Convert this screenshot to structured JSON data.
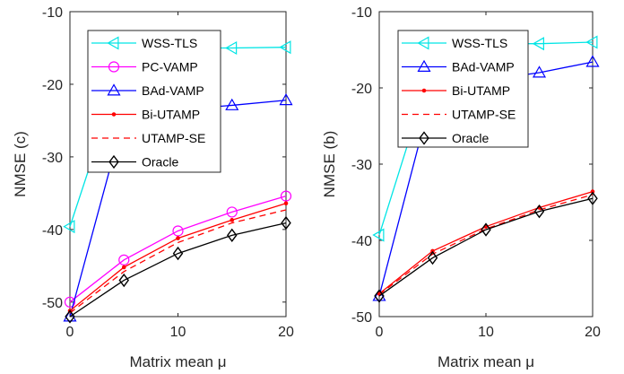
{
  "chart_data": [
    {
      "type": "line",
      "xlabel": "Matrix mean μ",
      "ylabel": "NMSE (c)",
      "xlim": [
        0,
        20
      ],
      "ylim": [
        -52,
        -10
      ],
      "xticks": [
        "0",
        "10",
        "20"
      ],
      "yticks": [
        "-50",
        "-40",
        "-30",
        "-20",
        "-10"
      ],
      "grid": false,
      "legend_placement": "top-center",
      "x": [
        0,
        5,
        10,
        15,
        20
      ],
      "series": [
        {
          "name": "WSS-TLS",
          "color": "#00e5e5",
          "marker": "triangle-left",
          "dash": "solid",
          "values": [
            -39.6,
            -17.0,
            -15.0,
            -15.0,
            -14.9
          ]
        },
        {
          "name": "PC-VAMP",
          "color": "#ff00ff",
          "marker": "circle",
          "dash": "solid",
          "values": [
            -50.0,
            -44.2,
            -40.2,
            -37.6,
            -35.4
          ]
        },
        {
          "name": "BAd-VAMP",
          "color": "#0000ff",
          "marker": "triangle-up",
          "dash": "solid",
          "values": [
            -52.0,
            -24.5,
            -23.5,
            -22.9,
            -22.2
          ]
        },
        {
          "name": "Bi-UTAMP",
          "color": "#ff0000",
          "marker": "dot",
          "dash": "solid",
          "values": [
            -51.2,
            -45.2,
            -41.2,
            -38.7,
            -36.4
          ]
        },
        {
          "name": "UTAMP-SE",
          "color": "#ff0000",
          "marker": "none",
          "dash": "dashed",
          "values": [
            -51.5,
            -45.8,
            -41.8,
            -39.1,
            -37.3
          ]
        },
        {
          "name": "Oracle",
          "color": "#000000",
          "marker": "diamond",
          "dash": "solid",
          "values": [
            -52.0,
            -47.0,
            -43.3,
            -40.8,
            -39.1
          ]
        }
      ]
    },
    {
      "type": "line",
      "xlabel": "Matrix mean μ",
      "ylabel": "NMSE (b)",
      "xlim": [
        0,
        20
      ],
      "ylim": [
        -50,
        -10
      ],
      "xticks": [
        "0",
        "10",
        "20"
      ],
      "yticks": [
        "-50",
        "-40",
        "-30",
        "-20",
        "-10"
      ],
      "grid": false,
      "legend_placement": "top-center",
      "x": [
        0,
        5,
        10,
        15,
        20
      ],
      "series": [
        {
          "name": "WSS-TLS",
          "color": "#00e5e5",
          "marker": "triangle-left",
          "dash": "solid",
          "values": [
            -39.3,
            -17.0,
            -14.2,
            -14.2,
            -14.0
          ]
        },
        {
          "name": "BAd-VAMP",
          "color": "#0000ff",
          "marker": "triangle-up",
          "dash": "solid",
          "values": [
            -47.3,
            -20.5,
            -19.0,
            -18.0,
            -16.6
          ]
        },
        {
          "name": "Bi-UTAMP",
          "color": "#ff0000",
          "marker": "dot",
          "dash": "solid",
          "values": [
            -47.0,
            -41.4,
            -38.2,
            -35.7,
            -33.6
          ]
        },
        {
          "name": "UTAMP-SE",
          "color": "#ff0000",
          "marker": "none",
          "dash": "dashed",
          "values": [
            -47.1,
            -41.8,
            -38.5,
            -36.0,
            -34.0
          ]
        },
        {
          "name": "Oracle",
          "color": "#000000",
          "marker": "diamond",
          "dash": "solid",
          "values": [
            -47.3,
            -42.3,
            -38.6,
            -36.2,
            -34.5
          ]
        }
      ]
    }
  ]
}
